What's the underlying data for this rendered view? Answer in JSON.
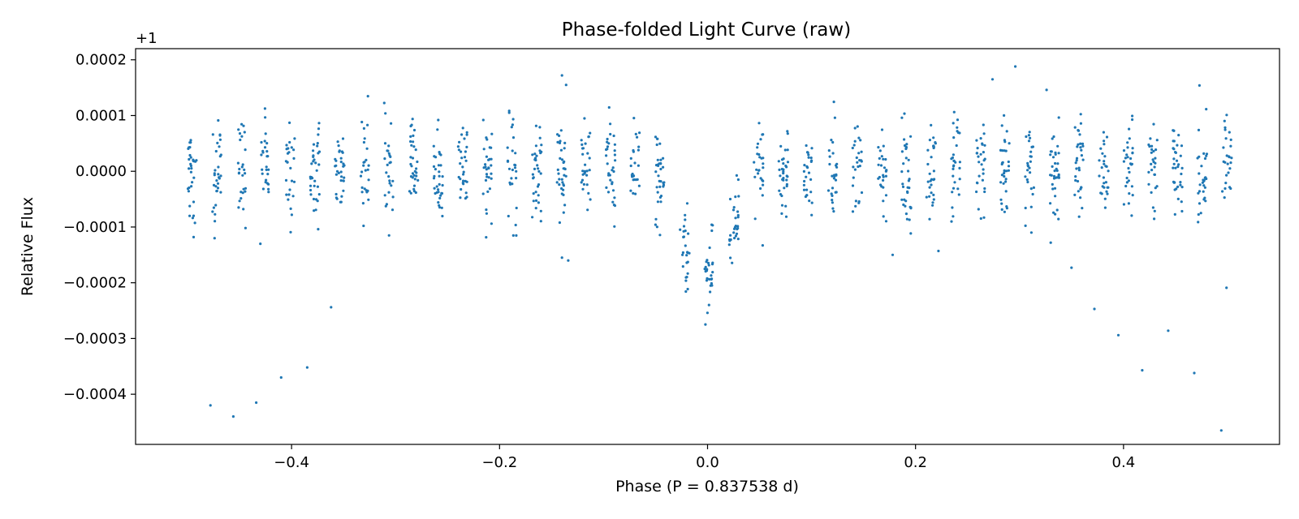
{
  "chart_data": {
    "type": "scatter",
    "title": "Phase-folded Light Curve (raw)",
    "xlabel": "Phase (P = 0.837538 d)",
    "ylabel": "Relative Flux",
    "y_offset_label": "+1",
    "xlim": [
      -0.55,
      0.55
    ],
    "ylim": [
      -0.00049,
      0.00022
    ],
    "xticks": [
      -0.4,
      -0.2,
      0.0,
      0.2,
      0.4
    ],
    "xtick_labels": [
      "−0.4",
      "−0.2",
      "0.0",
      "0.2",
      "0.4"
    ],
    "yticks": [
      0.0002,
      0.0001,
      0.0,
      -0.0001,
      -0.0002,
      -0.0003,
      -0.0004
    ],
    "ytick_labels": [
      "0.0002",
      "0.0001",
      "0.0000",
      "−0.0001",
      "−0.0002",
      "−0.0003",
      "−0.0004"
    ],
    "grid": false,
    "point_color": "#1f77b4",
    "cadence_phase_step": 0.0237,
    "transit": {
      "center": 0.0,
      "half_width": 0.045,
      "depth": 0.00019
    },
    "noise_sigma": 4.5e-05,
    "outliers": [
      {
        "x": -0.498,
        "y": -8e-05
      },
      {
        "x": -0.478,
        "y": -0.00042
      },
      {
        "x": -0.474,
        "y": -0.00012
      },
      {
        "x": -0.456,
        "y": -0.00044
      },
      {
        "x": -0.434,
        "y": -0.000415
      },
      {
        "x": -0.43,
        "y": -0.00013
      },
      {
        "x": -0.41,
        "y": -0.00037
      },
      {
        "x": -0.385,
        "y": -0.000352
      },
      {
        "x": -0.362,
        "y": -0.000244
      },
      {
        "x": -0.14,
        "y": 0.000172
      },
      {
        "x": -0.136,
        "y": 0.000155
      },
      {
        "x": -0.14,
        "y": -0.000155
      },
      {
        "x": -0.134,
        "y": -0.00016
      },
      {
        "x": 0.053,
        "y": -0.000133
      },
      {
        "x": 0.178,
        "y": -0.00015
      },
      {
        "x": 0.222,
        "y": -0.000143
      },
      {
        "x": 0.274,
        "y": 0.000165
      },
      {
        "x": 0.296,
        "y": 0.000188
      },
      {
        "x": 0.326,
        "y": 0.000146
      },
      {
        "x": 0.33,
        "y": -0.000128
      },
      {
        "x": 0.35,
        "y": -0.000173
      },
      {
        "x": 0.372,
        "y": -0.000247
      },
      {
        "x": 0.395,
        "y": -0.000294
      },
      {
        "x": 0.418,
        "y": -0.000357
      },
      {
        "x": 0.443,
        "y": -0.000286
      },
      {
        "x": 0.468,
        "y": -0.000362
      },
      {
        "x": 0.473,
        "y": 0.000154
      },
      {
        "x": 0.494,
        "y": -0.000465
      },
      {
        "x": 0.499,
        "y": -0.000209
      }
    ]
  }
}
